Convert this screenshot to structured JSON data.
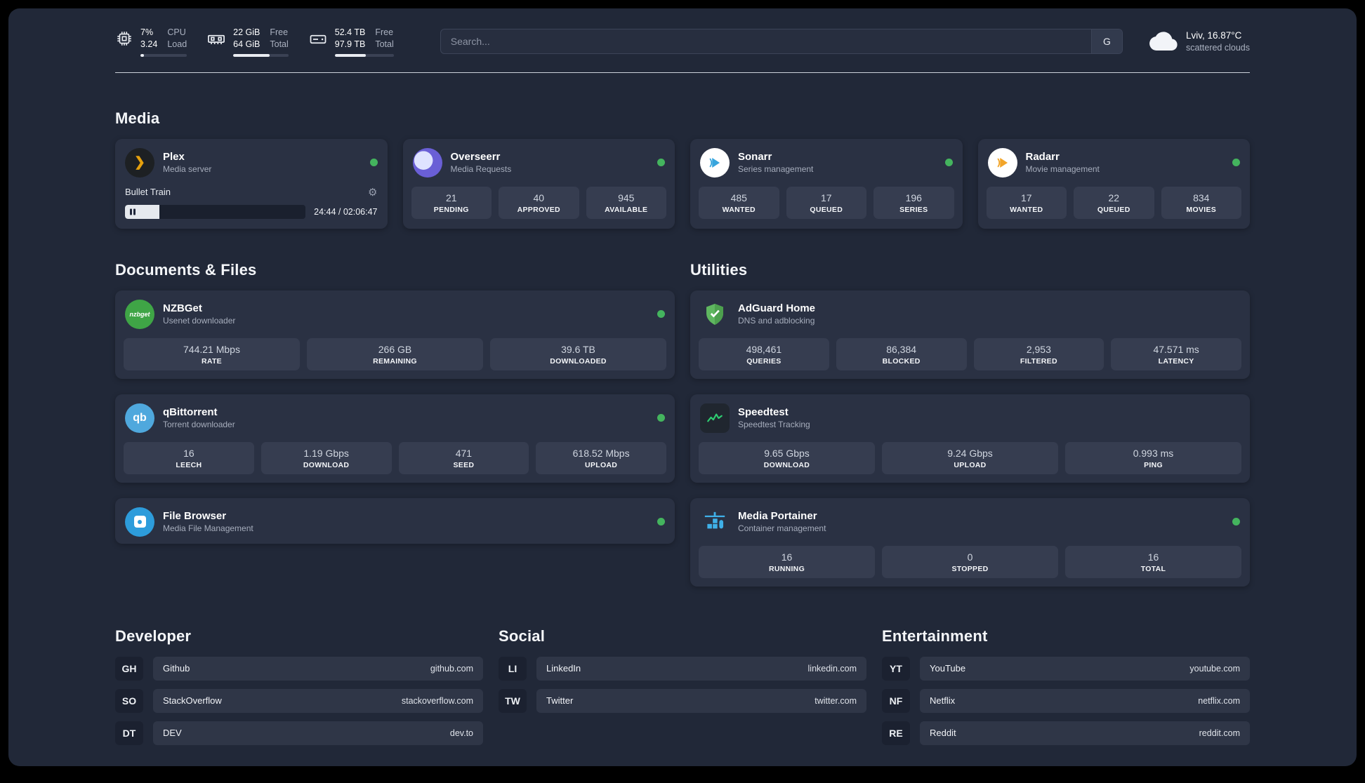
{
  "icons": {
    "gear": "⚙",
    "plex_chevron": "❯"
  },
  "topbar": {
    "cpu": {
      "top_left": "7%",
      "bottom_left": "3.24",
      "top_right": "CPU",
      "bottom_right": "Load",
      "progress": 8
    },
    "ram": {
      "top_left": "22 GiB",
      "bottom_left": "64 GiB",
      "top_right": "Free",
      "bottom_right": "Total",
      "progress": 66
    },
    "disk": {
      "top_left": "52.4 TB",
      "bottom_left": "97.9 TB",
      "top_right": "Free",
      "bottom_right": "Total",
      "progress": 53
    },
    "search": {
      "placeholder": "Search...",
      "button_label": "G"
    },
    "weather": {
      "location": "Lviv, 16.87°C",
      "condition": "scattered clouds"
    }
  },
  "media": {
    "heading": "Media",
    "plex": {
      "title": "Plex",
      "subtitle": "Media server",
      "now_playing": "Bullet Train",
      "time": "24:44 / 02:06:47",
      "progress": 19
    },
    "overseerr": {
      "title": "Overseerr",
      "subtitle": "Media Requests",
      "stats": [
        {
          "value": "21",
          "label": "PENDING"
        },
        {
          "value": "40",
          "label": "APPROVED"
        },
        {
          "value": "945",
          "label": "AVAILABLE"
        }
      ]
    },
    "sonarr": {
      "title": "Sonarr",
      "subtitle": "Series management",
      "stats": [
        {
          "value": "485",
          "label": "WANTED"
        },
        {
          "value": "17",
          "label": "QUEUED"
        },
        {
          "value": "196",
          "label": "SERIES"
        }
      ]
    },
    "radarr": {
      "title": "Radarr",
      "subtitle": "Movie management",
      "stats": [
        {
          "value": "17",
          "label": "WANTED"
        },
        {
          "value": "22",
          "label": "QUEUED"
        },
        {
          "value": "834",
          "label": "MOVIES"
        }
      ]
    }
  },
  "documents": {
    "heading": "Documents & Files",
    "nzbget": {
      "title": "NZBGet",
      "subtitle": "Usenet downloader",
      "icon_text": "nzbget",
      "stats": [
        {
          "value": "744.21 Mbps",
          "label": "RATE"
        },
        {
          "value": "266 GB",
          "label": "REMAINING"
        },
        {
          "value": "39.6 TB",
          "label": "DOWNLOADED"
        }
      ]
    },
    "qbittorrent": {
      "title": "qBittorrent",
      "subtitle": "Torrent downloader",
      "icon_text": "qb",
      "stats": [
        {
          "value": "16",
          "label": "LEECH"
        },
        {
          "value": "1.19 Gbps",
          "label": "DOWNLOAD"
        },
        {
          "value": "471",
          "label": "SEED"
        },
        {
          "value": "618.52 Mbps",
          "label": "UPLOAD"
        }
      ]
    },
    "filebrowser": {
      "title": "File Browser",
      "subtitle": "Media File Management"
    }
  },
  "utilities": {
    "heading": "Utilities",
    "adguard": {
      "title": "AdGuard Home",
      "subtitle": "DNS and adblocking",
      "stats": [
        {
          "value": "498,461",
          "label": "QUERIES"
        },
        {
          "value": "86,384",
          "label": "BLOCKED"
        },
        {
          "value": "2,953",
          "label": "FILTERED"
        },
        {
          "value": "47.571 ms",
          "label": "LATENCY"
        }
      ]
    },
    "speedtest": {
      "title": "Speedtest",
      "subtitle": "Speedtest Tracking",
      "stats": [
        {
          "value": "9.65 Gbps",
          "label": "DOWNLOAD"
        },
        {
          "value": "9.24 Gbps",
          "label": "UPLOAD"
        },
        {
          "value": "0.993 ms",
          "label": "PING"
        }
      ]
    },
    "portainer": {
      "title": "Media Portainer",
      "subtitle": "Container management",
      "stats": [
        {
          "value": "16",
          "label": "RUNNING"
        },
        {
          "value": "0",
          "label": "STOPPED"
        },
        {
          "value": "16",
          "label": "TOTAL"
        }
      ]
    }
  },
  "bookmarks": {
    "developer": {
      "heading": "Developer",
      "items": [
        {
          "abbr": "GH",
          "name": "Github",
          "url": "github.com"
        },
        {
          "abbr": "SO",
          "name": "StackOverflow",
          "url": "stackoverflow.com"
        },
        {
          "abbr": "DT",
          "name": "DEV",
          "url": "dev.to"
        }
      ]
    },
    "social": {
      "heading": "Social",
      "items": [
        {
          "abbr": "LI",
          "name": "LinkedIn",
          "url": "linkedin.com"
        },
        {
          "abbr": "TW",
          "name": "Twitter",
          "url": "twitter.com"
        }
      ]
    },
    "entertainment": {
      "heading": "Entertainment",
      "items": [
        {
          "abbr": "YT",
          "name": "YouTube",
          "url": "youtube.com"
        },
        {
          "abbr": "NF",
          "name": "Netflix",
          "url": "netflix.com"
        },
        {
          "abbr": "RE",
          "name": "Reddit",
          "url": "reddit.com"
        }
      ]
    }
  }
}
